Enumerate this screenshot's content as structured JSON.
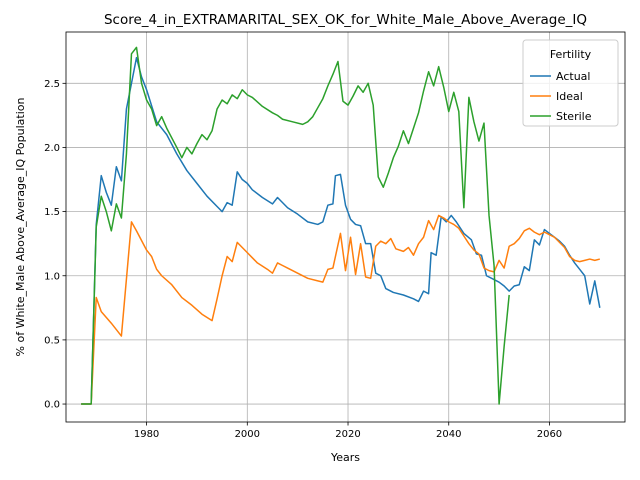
{
  "chart_data": {
    "type": "line",
    "title": "Score_4_in_EXTRAMARITAL_SEX_OK_for_White_Male_Above_Average_IQ",
    "xlabel": "Years",
    "ylabel": "% of White_Male Above_Average_IQ Population",
    "xlim": [
      1964,
      2075
    ],
    "ylim": [
      -0.14,
      2.9
    ],
    "xticks": [
      1980,
      2000,
      2020,
      2040,
      2060
    ],
    "yticks": [
      0.0,
      0.5,
      1.0,
      1.5,
      2.0,
      2.5
    ],
    "xtick_labels": [
      "1980",
      "2000",
      "2020",
      "2040",
      "2060"
    ],
    "ytick_labels": [
      "0.0",
      "0.5",
      "1.0",
      "1.5",
      "2.0",
      "2.5"
    ],
    "grid": true,
    "legend": {
      "title": "Fertility",
      "position": "top-right"
    },
    "series": [
      {
        "name": "Actual",
        "color": "#1f77b4",
        "points": [
          [
            1967,
            0
          ],
          [
            1969,
            0
          ],
          [
            1970,
            1.4
          ],
          [
            1971,
            1.78
          ],
          [
            1972,
            1.65
          ],
          [
            1973,
            1.55
          ],
          [
            1974,
            1.85
          ],
          [
            1975,
            1.74
          ],
          [
            1976,
            2.3
          ],
          [
            1977,
            2.5
          ],
          [
            1978,
            2.7
          ],
          [
            1979,
            2.55
          ],
          [
            1980,
            2.45
          ],
          [
            1982,
            2.2
          ],
          [
            1984,
            2.1
          ],
          [
            1986,
            1.95
          ],
          [
            1988,
            1.82
          ],
          [
            1990,
            1.72
          ],
          [
            1992,
            1.62
          ],
          [
            1994,
            1.54
          ],
          [
            1995,
            1.5
          ],
          [
            1996,
            1.57
          ],
          [
            1997,
            1.55
          ],
          [
            1998,
            1.81
          ],
          [
            1999,
            1.75
          ],
          [
            2000,
            1.72
          ],
          [
            2001,
            1.67
          ],
          [
            2003,
            1.61
          ],
          [
            2005,
            1.56
          ],
          [
            2006,
            1.61
          ],
          [
            2007,
            1.57
          ],
          [
            2008,
            1.53
          ],
          [
            2010,
            1.48
          ],
          [
            2012,
            1.42
          ],
          [
            2014,
            1.4
          ],
          [
            2015,
            1.42
          ],
          [
            2016,
            1.55
          ],
          [
            2017,
            1.56
          ],
          [
            2017.5,
            1.78
          ],
          [
            2018.5,
            1.79
          ],
          [
            2019.5,
            1.55
          ],
          [
            2020.5,
            1.44
          ],
          [
            2021.5,
            1.4
          ],
          [
            2022.5,
            1.39
          ],
          [
            2023.5,
            1.25
          ],
          [
            2024.5,
            1.25
          ],
          [
            2025.5,
            1.02
          ],
          [
            2026.5,
            1.0
          ],
          [
            2027.5,
            0.9
          ],
          [
            2029,
            0.87
          ],
          [
            2031,
            0.85
          ],
          [
            2033,
            0.82
          ],
          [
            2034,
            0.8
          ],
          [
            2035,
            0.88
          ],
          [
            2036,
            0.86
          ],
          [
            2036.5,
            1.18
          ],
          [
            2037.5,
            1.16
          ],
          [
            2038.5,
            1.46
          ],
          [
            2039.5,
            1.42
          ],
          [
            2040.5,
            1.47
          ],
          [
            2041.5,
            1.42
          ],
          [
            2043,
            1.33
          ],
          [
            2044.5,
            1.28
          ],
          [
            2045.5,
            1.17
          ],
          [
            2046.5,
            1.16
          ],
          [
            2047.5,
            1.0
          ],
          [
            2049,
            0.97
          ],
          [
            2050,
            0.95
          ],
          [
            2051,
            0.92
          ],
          [
            2052,
            0.88
          ],
          [
            2053,
            0.92
          ],
          [
            2054,
            0.93
          ],
          [
            2055,
            1.07
          ],
          [
            2056,
            1.04
          ],
          [
            2057,
            1.28
          ],
          [
            2058,
            1.24
          ],
          [
            2059,
            1.36
          ],
          [
            2060,
            1.33
          ],
          [
            2061,
            1.3
          ],
          [
            2062,
            1.27
          ],
          [
            2063,
            1.23
          ],
          [
            2064,
            1.16
          ],
          [
            2065,
            1.1
          ],
          [
            2066,
            1.05
          ],
          [
            2067,
            1.0
          ],
          [
            2068,
            0.78
          ],
          [
            2069,
            0.96
          ],
          [
            2070,
            0.75
          ]
        ]
      },
      {
        "name": "Ideal",
        "color": "#ff7f0e",
        "points": [
          [
            1967,
            0
          ],
          [
            1969,
            0
          ],
          [
            1970,
            0.83
          ],
          [
            1971,
            0.72
          ],
          [
            1973,
            0.63
          ],
          [
            1975,
            0.53
          ],
          [
            1977,
            1.42
          ],
          [
            1978,
            1.35
          ],
          [
            1980,
            1.2
          ],
          [
            1981,
            1.15
          ],
          [
            1982,
            1.05
          ],
          [
            1983,
            1.0
          ],
          [
            1985,
            0.93
          ],
          [
            1987,
            0.83
          ],
          [
            1989,
            0.77
          ],
          [
            1991,
            0.7
          ],
          [
            1993,
            0.65
          ],
          [
            1994,
            0.82
          ],
          [
            1995,
            1.0
          ],
          [
            1996,
            1.15
          ],
          [
            1997,
            1.11
          ],
          [
            1998,
            1.26
          ],
          [
            1999,
            1.22
          ],
          [
            2000,
            1.18
          ],
          [
            2002,
            1.1
          ],
          [
            2004,
            1.05
          ],
          [
            2005,
            1.02
          ],
          [
            2006,
            1.1
          ],
          [
            2007,
            1.08
          ],
          [
            2008,
            1.06
          ],
          [
            2010,
            1.02
          ],
          [
            2012,
            0.98
          ],
          [
            2014,
            0.96
          ],
          [
            2015,
            0.95
          ],
          [
            2016,
            1.05
          ],
          [
            2017,
            1.06
          ],
          [
            2018.5,
            1.33
          ],
          [
            2019.5,
            1.04
          ],
          [
            2020.5,
            1.3
          ],
          [
            2021.5,
            1.01
          ],
          [
            2022.5,
            1.25
          ],
          [
            2023.5,
            0.99
          ],
          [
            2024.5,
            0.98
          ],
          [
            2025.5,
            1.23
          ],
          [
            2026.5,
            1.27
          ],
          [
            2027.5,
            1.25
          ],
          [
            2028.5,
            1.29
          ],
          [
            2029.5,
            1.21
          ],
          [
            2031,
            1.19
          ],
          [
            2032,
            1.22
          ],
          [
            2033,
            1.16
          ],
          [
            2034,
            1.25
          ],
          [
            2035,
            1.3
          ],
          [
            2036,
            1.43
          ],
          [
            2037,
            1.36
          ],
          [
            2038,
            1.47
          ],
          [
            2039,
            1.45
          ],
          [
            2040,
            1.42
          ],
          [
            2041,
            1.4
          ],
          [
            2042,
            1.37
          ],
          [
            2043,
            1.31
          ],
          [
            2044,
            1.25
          ],
          [
            2045,
            1.2
          ],
          [
            2046,
            1.17
          ],
          [
            2047,
            1.06
          ],
          [
            2048,
            1.04
          ],
          [
            2049,
            1.03
          ],
          [
            2050,
            1.12
          ],
          [
            2051,
            1.06
          ],
          [
            2052,
            1.23
          ],
          [
            2053,
            1.25
          ],
          [
            2054,
            1.29
          ],
          [
            2055,
            1.35
          ],
          [
            2056,
            1.37
          ],
          [
            2057,
            1.34
          ],
          [
            2058,
            1.32
          ],
          [
            2059,
            1.34
          ],
          [
            2060,
            1.32
          ],
          [
            2061,
            1.3
          ],
          [
            2062,
            1.26
          ],
          [
            2063,
            1.22
          ],
          [
            2064,
            1.15
          ],
          [
            2065,
            1.12
          ],
          [
            2066,
            1.11
          ],
          [
            2067,
            1.12
          ],
          [
            2068,
            1.13
          ],
          [
            2069,
            1.12
          ],
          [
            2070,
            1.13
          ]
        ]
      },
      {
        "name": "Sterile",
        "color": "#2ca02c",
        "points": [
          [
            1967,
            0
          ],
          [
            1969,
            0
          ],
          [
            1970,
            1.38
          ],
          [
            1971,
            1.62
          ],
          [
            1972,
            1.5
          ],
          [
            1973,
            1.35
          ],
          [
            1974,
            1.56
          ],
          [
            1975,
            1.45
          ],
          [
            1976,
            1.95
          ],
          [
            1977,
            2.73
          ],
          [
            1978,
            2.78
          ],
          [
            1979,
            2.5
          ],
          [
            1980,
            2.37
          ],
          [
            1981,
            2.3
          ],
          [
            1982,
            2.17
          ],
          [
            1983,
            2.24
          ],
          [
            1984,
            2.15
          ],
          [
            1986,
            2.0
          ],
          [
            1987,
            1.92
          ],
          [
            1988,
            2.0
          ],
          [
            1989,
            1.95
          ],
          [
            1990,
            2.03
          ],
          [
            1991,
            2.1
          ],
          [
            1992,
            2.06
          ],
          [
            1993,
            2.13
          ],
          [
            1994,
            2.3
          ],
          [
            1995,
            2.37
          ],
          [
            1996,
            2.34
          ],
          [
            1997,
            2.41
          ],
          [
            1998,
            2.38
          ],
          [
            1999,
            2.45
          ],
          [
            2000,
            2.41
          ],
          [
            2001,
            2.39
          ],
          [
            2003,
            2.32
          ],
          [
            2005,
            2.27
          ],
          [
            2006,
            2.25
          ],
          [
            2007,
            2.22
          ],
          [
            2009,
            2.2
          ],
          [
            2011,
            2.18
          ],
          [
            2012,
            2.2
          ],
          [
            2013,
            2.24
          ],
          [
            2014,
            2.31
          ],
          [
            2015,
            2.38
          ],
          [
            2016,
            2.48
          ],
          [
            2017,
            2.57
          ],
          [
            2018,
            2.67
          ],
          [
            2019,
            2.36
          ],
          [
            2020,
            2.33
          ],
          [
            2021,
            2.4
          ],
          [
            2022,
            2.48
          ],
          [
            2023,
            2.43
          ],
          [
            2024,
            2.5
          ],
          [
            2025,
            2.33
          ],
          [
            2026,
            1.77
          ],
          [
            2027,
            1.69
          ],
          [
            2028,
            1.8
          ],
          [
            2029,
            1.92
          ],
          [
            2030,
            2.01
          ],
          [
            2031,
            2.13
          ],
          [
            2032,
            2.03
          ],
          [
            2033,
            2.15
          ],
          [
            2034,
            2.27
          ],
          [
            2035,
            2.44
          ],
          [
            2036,
            2.59
          ],
          [
            2037,
            2.48
          ],
          [
            2038,
            2.63
          ],
          [
            2039,
            2.47
          ],
          [
            2040,
            2.28
          ],
          [
            2041,
            2.43
          ],
          [
            2042,
            2.28
          ],
          [
            2043,
            1.53
          ],
          [
            2044,
            2.39
          ],
          [
            2045,
            2.2
          ],
          [
            2046,
            2.05
          ],
          [
            2047,
            2.19
          ],
          [
            2048,
            1.47
          ],
          [
            2049,
            1.08
          ],
          [
            2050,
            0.0
          ],
          [
            2051,
            0.45
          ],
          [
            2052,
            0.85
          ]
        ]
      }
    ]
  }
}
